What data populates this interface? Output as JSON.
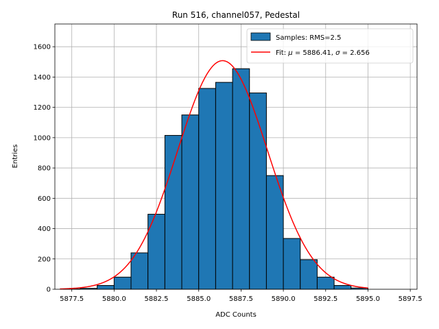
{
  "chart_data": {
    "type": "bar",
    "title": "Run 516, channel057, Pedestal",
    "xlabel": "ADC Counts",
    "ylabel": "Entries",
    "xlim": [
      5876.5,
      5897.9
    ],
    "ylim": [
      0,
      1750
    ],
    "xticks": [
      5877.5,
      5880.0,
      5882.5,
      5885.0,
      5887.5,
      5890.0,
      5892.5,
      5895.0,
      5897.5
    ],
    "xtick_labels": [
      "5877.5",
      "5880.0",
      "5882.5",
      "5885.0",
      "5887.5",
      "5890.0",
      "5892.5",
      "5895.0",
      "5897.5"
    ],
    "yticks": [
      0,
      200,
      400,
      600,
      800,
      1000,
      1200,
      1400,
      1600
    ],
    "ytick_labels": [
      "0",
      "200",
      "400",
      "600",
      "800",
      "1000",
      "1200",
      "1400",
      "1600"
    ],
    "grid": true,
    "legend_position": "top-right",
    "histogram": {
      "name": "Samples: RMS=2.5",
      "color": "#1f77b4",
      "edgecolor": "#000000",
      "bin_edges": [
        5877.0,
        5878.0,
        5879.0,
        5880.0,
        5881.0,
        5882.0,
        5883.0,
        5884.0,
        5885.0,
        5886.0,
        5887.0,
        5888.0,
        5889.0,
        5890.0,
        5891.0,
        5892.0,
        5893.0,
        5894.0,
        5895.0
      ],
      "values": [
        2,
        6,
        25,
        80,
        240,
        495,
        1015,
        1150,
        1325,
        1365,
        1455,
        1295,
        750,
        335,
        195,
        80,
        25,
        8
      ]
    },
    "fit": {
      "name": "Fit: μ = 5886.41, σ = 2.656",
      "label_parts": [
        "Fit: ",
        "μ",
        " = 5886.41, ",
        "σ",
        " = 2.656"
      ],
      "color": "#ff0000",
      "mu": 5886.41,
      "sigma": 2.656,
      "amplitude": 1508,
      "x_range": [
        5876.8,
        5895.0
      ]
    }
  }
}
